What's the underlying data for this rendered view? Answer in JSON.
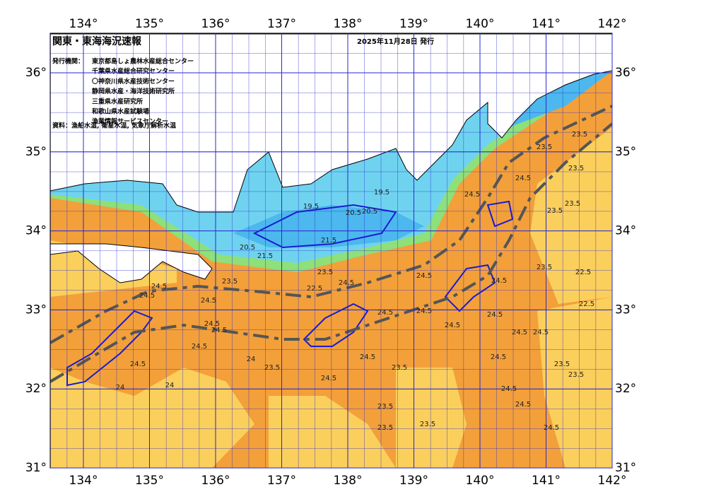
{
  "header": {
    "title": "関東・東海海況速報",
    "date": "2025年11月28日 発行"
  },
  "agencies": {
    "label": "発行機関：",
    "items": [
      "東京都島しょ農林水産総合センター",
      "千葉県水産総合研究センター",
      "〇神奈川県水産技術センター",
      "静岡県水産・海洋技術研究所",
      "三重県水産研究所",
      "和歌山県水産試験場",
      "漁業情報サービスセンター"
    ]
  },
  "sources": "資料：漁船水温, 衛星水温, 気象庁解析水温",
  "map": {
    "xlim": [
      133.5,
      142
    ],
    "ylim": [
      31,
      36.5
    ],
    "xticks": [
      {
        "value": 134,
        "label": "134°"
      },
      {
        "value": 135,
        "label": "135°"
      },
      {
        "value": 136,
        "label": "136°"
      },
      {
        "value": 137,
        "label": "137°"
      },
      {
        "value": 138,
        "label": "138°"
      },
      {
        "value": 139,
        "label": "139°"
      },
      {
        "value": 140,
        "label": "140°"
      },
      {
        "value": 141,
        "label": "141°"
      },
      {
        "value": 142,
        "label": "142°"
      }
    ],
    "yticks": [
      {
        "value": 31,
        "label": "31°"
      },
      {
        "value": 32,
        "label": "32°"
      },
      {
        "value": 33,
        "label": "33°"
      },
      {
        "value": 34,
        "label": "34°"
      },
      {
        "value": 35,
        "label": "35°"
      },
      {
        "value": 36,
        "label": "36°"
      }
    ],
    "contour_labels": [
      24.5,
      24.5,
      24.5,
      24.5,
      24.5,
      24.5,
      24,
      24,
      24,
      23.5,
      24.5,
      24.5,
      24.5,
      24.5,
      23.5,
      23.5,
      23.5,
      23.5,
      24.5,
      24.5,
      24.5,
      24.5,
      24.5,
      24.5,
      24.5,
      24.5,
      23.5,
      23.5,
      23.5,
      22.5,
      22.5,
      23.5,
      23.5,
      23.5,
      23.5,
      23.5,
      24.5,
      24.5,
      24.5,
      24.5,
      24.5,
      23.5,
      22.5,
      20.5,
      21.5,
      19.5,
      21.5,
      19.5,
      20.5,
      20.5,
      23.5,
      24.5
    ]
  }
}
